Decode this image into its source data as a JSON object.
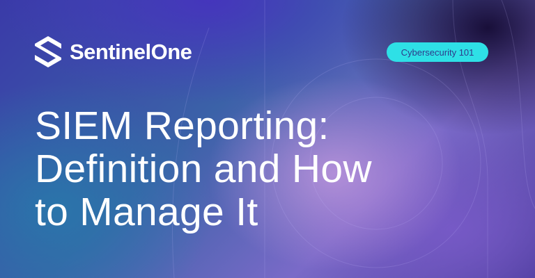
{
  "brand": {
    "name": "SentinelOne",
    "icon": "sentinelone-hexagon-logo"
  },
  "badge": {
    "label": "Cybersecurity 101",
    "color": "#2ee0e6"
  },
  "title": {
    "lines": [
      "SIEM Reporting:",
      "Definition and How",
      "to Manage It"
    ]
  }
}
